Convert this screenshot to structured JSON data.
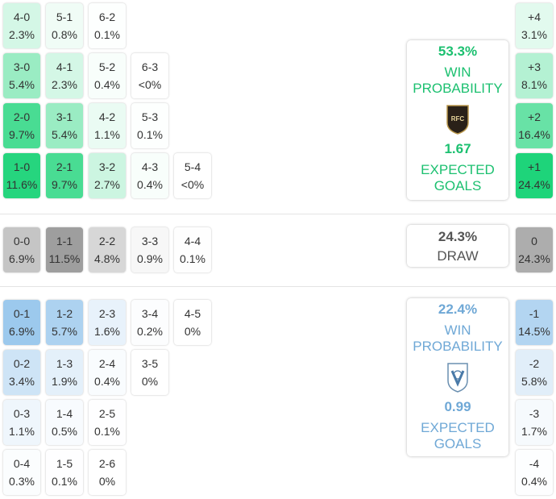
{
  "colors": {
    "home": "#1ed47a",
    "draw": "#9a9a9a",
    "away": "#8cc0ea",
    "home_text": "#1cc070",
    "away_text": "#6fa8d6",
    "draw_text": "#555555"
  },
  "home_grid": [
    [
      {
        "score": "4-0",
        "pct": "2.3%",
        "v": 2.3
      },
      {
        "score": "5-1",
        "pct": "0.8%",
        "v": 0.8
      },
      {
        "score": "6-2",
        "pct": "0.1%",
        "v": 0.1
      }
    ],
    [
      {
        "score": "3-0",
        "pct": "5.4%",
        "v": 5.4
      },
      {
        "score": "4-1",
        "pct": "2.3%",
        "v": 2.3
      },
      {
        "score": "5-2",
        "pct": "0.4%",
        "v": 0.4
      },
      {
        "score": "6-3",
        "pct": "<0%",
        "v": 0
      }
    ],
    [
      {
        "score": "2-0",
        "pct": "9.7%",
        "v": 9.7
      },
      {
        "score": "3-1",
        "pct": "5.4%",
        "v": 5.4
      },
      {
        "score": "4-2",
        "pct": "1.1%",
        "v": 1.1
      },
      {
        "score": "5-3",
        "pct": "0.1%",
        "v": 0.1
      }
    ],
    [
      {
        "score": "1-0",
        "pct": "11.6%",
        "v": 11.6
      },
      {
        "score": "2-1",
        "pct": "9.7%",
        "v": 9.7
      },
      {
        "score": "3-2",
        "pct": "2.7%",
        "v": 2.7
      },
      {
        "score": "4-3",
        "pct": "0.4%",
        "v": 0.4
      },
      {
        "score": "5-4",
        "pct": "<0%",
        "v": 0
      }
    ]
  ],
  "draw_grid": [
    [
      {
        "score": "0-0",
        "pct": "6.9%",
        "v": 6.9
      },
      {
        "score": "1-1",
        "pct": "11.5%",
        "v": 11.5
      },
      {
        "score": "2-2",
        "pct": "4.8%",
        "v": 4.8
      },
      {
        "score": "3-3",
        "pct": "0.9%",
        "v": 0.9
      },
      {
        "score": "4-4",
        "pct": "0.1%",
        "v": 0.1
      }
    ]
  ],
  "away_grid": [
    [
      {
        "score": "0-1",
        "pct": "6.9%",
        "v": 6.9
      },
      {
        "score": "1-2",
        "pct": "5.7%",
        "v": 5.7
      },
      {
        "score": "2-3",
        "pct": "1.6%",
        "v": 1.6
      },
      {
        "score": "3-4",
        "pct": "0.2%",
        "v": 0.2
      },
      {
        "score": "4-5",
        "pct": "0%",
        "v": 0
      }
    ],
    [
      {
        "score": "0-2",
        "pct": "3.4%",
        "v": 3.4
      },
      {
        "score": "1-3",
        "pct": "1.9%",
        "v": 1.9
      },
      {
        "score": "2-4",
        "pct": "0.4%",
        "v": 0.4
      },
      {
        "score": "3-5",
        "pct": "0%",
        "v": 0
      }
    ],
    [
      {
        "score": "0-3",
        "pct": "1.1%",
        "v": 1.1
      },
      {
        "score": "1-4",
        "pct": "0.5%",
        "v": 0.5
      },
      {
        "score": "2-5",
        "pct": "0.1%",
        "v": 0.1
      }
    ],
    [
      {
        "score": "0-4",
        "pct": "0.3%",
        "v": 0.3
      },
      {
        "score": "1-5",
        "pct": "0.1%",
        "v": 0.1
      },
      {
        "score": "2-6",
        "pct": "0%",
        "v": 0
      }
    ]
  ],
  "margins_home": [
    {
      "label": "+4",
      "pct": "3.1%",
      "v": 3.1
    },
    {
      "label": "+3",
      "pct": "8.1%",
      "v": 8.1
    },
    {
      "label": "+2",
      "pct": "16.4%",
      "v": 16.4
    },
    {
      "label": "+1",
      "pct": "24.4%",
      "v": 24.4
    }
  ],
  "margins_draw": [
    {
      "label": "0",
      "pct": "24.3%",
      "v": 24.3
    }
  ],
  "margins_away": [
    {
      "label": "-1",
      "pct": "14.5%",
      "v": 14.5
    },
    {
      "label": "-2",
      "pct": "5.8%",
      "v": 5.8
    },
    {
      "label": "-3",
      "pct": "1.7%",
      "v": 1.7
    },
    {
      "label": "-4",
      "pct": "0.4%",
      "v": 0.4
    }
  ],
  "home_card": {
    "win_pct": "53.3%",
    "win_label_1": "WIN",
    "win_label_2": "PROBABILITY",
    "crest_text": "RFC",
    "xg": "1.67",
    "xg_label_1": "EXPECTED",
    "xg_label_2": "GOALS"
  },
  "draw_card": {
    "pct": "24.3%",
    "label": "DRAW"
  },
  "away_card": {
    "win_pct": "22.4%",
    "win_label_1": "WIN",
    "win_label_2": "PROBABILITY",
    "xg": "0.99",
    "xg_label_1": "EXPECTED",
    "xg_label_2": "GOALS"
  }
}
